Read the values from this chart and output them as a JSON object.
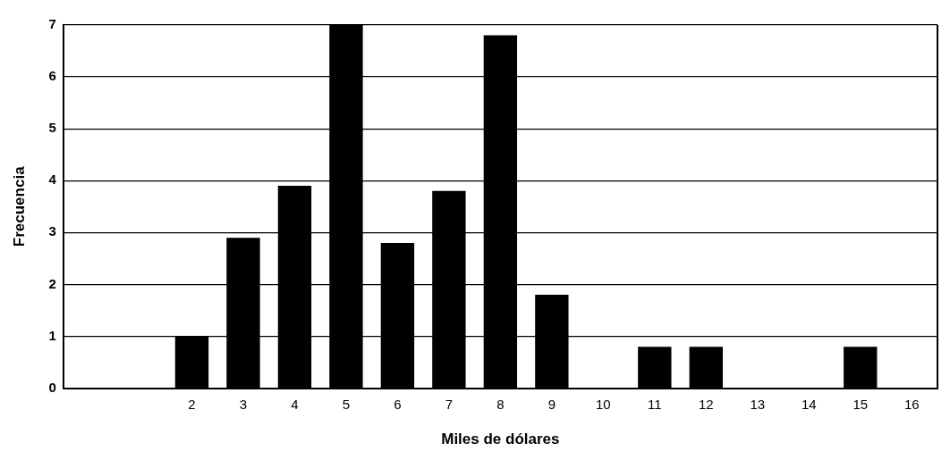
{
  "chart_data": {
    "type": "bar",
    "xlabel": "Miles de dólares",
    "ylabel": "Frecuencia",
    "categories": [
      null,
      null,
      "2",
      "3",
      "4",
      "5",
      "6",
      "7",
      "8",
      "9",
      "10",
      "11",
      "12",
      "13",
      "14",
      "15",
      "16"
    ],
    "values": [
      null,
      null,
      1,
      2.9,
      3.9,
      7,
      2.8,
      3.8,
      6.8,
      1.8,
      null,
      0.8,
      0.8,
      null,
      null,
      0.8,
      null
    ],
    "color": "#000000",
    "ylim": [
      0,
      7
    ],
    "yticks": [
      0,
      1,
      2,
      3,
      4,
      5,
      6,
      7
    ],
    "grid": "y",
    "legend": false
  }
}
